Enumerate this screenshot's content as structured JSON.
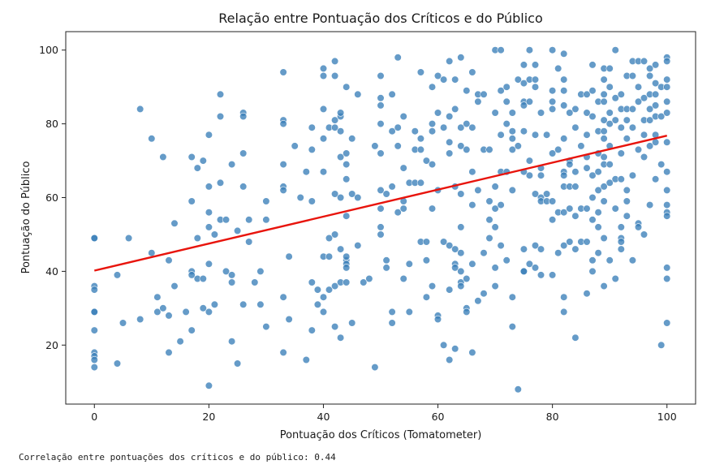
{
  "chart_data": {
    "type": "scatter",
    "title": "Relação entre Pontuação dos Críticos e do Público",
    "xlabel": "Pontuação dos Críticos (Tomatometer)",
    "ylabel": "Pontuação do Público",
    "xlim": [
      -5,
      105
    ],
    "ylim": [
      4,
      105
    ],
    "xticks": [
      0,
      20,
      40,
      60,
      80,
      100
    ],
    "yticks": [
      20,
      40,
      60,
      80,
      100
    ],
    "grid": false,
    "point_color": "#3a7fb8",
    "trend_line": {
      "color": "#e8140c",
      "x": [
        0,
        100
      ],
      "y": [
        40.2,
        76.8
      ]
    },
    "points": [
      [
        0,
        49
      ],
      [
        0,
        49
      ],
      [
        0,
        36
      ],
      [
        0,
        35
      ],
      [
        0,
        29
      ],
      [
        0,
        29
      ],
      [
        0,
        24
      ],
      [
        0,
        18
      ],
      [
        0,
        17
      ],
      [
        0,
        16
      ],
      [
        0,
        14
      ],
      [
        4,
        39
      ],
      [
        4,
        15
      ],
      [
        5,
        26
      ],
      [
        6,
        49
      ],
      [
        8,
        27
      ],
      [
        8,
        84
      ],
      [
        10,
        76
      ],
      [
        10,
        45
      ],
      [
        11,
        33
      ],
      [
        11,
        29
      ],
      [
        12,
        30
      ],
      [
        12,
        71
      ],
      [
        13,
        43
      ],
      [
        13,
        28
      ],
      [
        13,
        18
      ],
      [
        14,
        53
      ],
      [
        14,
        36
      ],
      [
        15,
        21
      ],
      [
        16,
        29
      ],
      [
        17,
        71
      ],
      [
        17,
        59
      ],
      [
        17,
        40
      ],
      [
        17,
        39
      ],
      [
        17,
        24
      ],
      [
        18,
        68
      ],
      [
        18,
        38
      ],
      [
        18,
        49
      ],
      [
        19,
        70
      ],
      [
        19,
        38
      ],
      [
        19,
        30
      ],
      [
        20,
        77
      ],
      [
        20,
        63
      ],
      [
        20,
        56
      ],
      [
        20,
        52
      ],
      [
        20,
        42
      ],
      [
        20,
        29
      ],
      [
        20,
        9
      ],
      [
        21,
        31
      ],
      [
        21,
        50
      ],
      [
        22,
        88
      ],
      [
        22,
        82
      ],
      [
        22,
        64
      ],
      [
        22,
        54
      ],
      [
        23,
        54
      ],
      [
        23,
        40
      ],
      [
        24,
        69
      ],
      [
        24,
        39
      ],
      [
        24,
        37
      ],
      [
        24,
        21
      ],
      [
        25,
        51
      ],
      [
        25,
        15
      ],
      [
        26,
        83
      ],
      [
        26,
        82
      ],
      [
        26,
        72
      ],
      [
        26,
        63
      ],
      [
        26,
        31
      ],
      [
        27,
        54
      ],
      [
        27,
        48
      ],
      [
        28,
        37
      ],
      [
        29,
        40
      ],
      [
        29,
        31
      ],
      [
        30,
        59
      ],
      [
        30,
        54
      ],
      [
        30,
        25
      ],
      [
        33,
        94
      ],
      [
        33,
        81
      ],
      [
        33,
        80
      ],
      [
        33,
        69
      ],
      [
        33,
        63
      ],
      [
        33,
        62
      ],
      [
        33,
        33
      ],
      [
        33,
        18
      ],
      [
        34,
        44
      ],
      [
        34,
        27
      ],
      [
        35,
        74
      ],
      [
        36,
        60
      ],
      [
        37,
        67
      ],
      [
        37,
        16
      ],
      [
        38,
        79
      ],
      [
        38,
        73
      ],
      [
        38,
        59
      ],
      [
        38,
        37
      ],
      [
        38,
        24
      ],
      [
        39,
        35
      ],
      [
        39,
        31
      ],
      [
        40,
        93
      ],
      [
        40,
        95
      ],
      [
        40,
        84
      ],
      [
        40,
        76
      ],
      [
        40,
        67
      ],
      [
        40,
        44
      ],
      [
        40,
        33
      ],
      [
        40,
        29
      ],
      [
        41,
        79
      ],
      [
        41,
        49
      ],
      [
        41,
        44
      ],
      [
        41,
        35
      ],
      [
        42,
        97
      ],
      [
        42,
        93
      ],
      [
        42,
        79
      ],
      [
        42,
        61
      ],
      [
        42,
        81
      ],
      [
        42,
        50
      ],
      [
        42,
        36
      ],
      [
        42,
        25
      ],
      [
        43,
        82
      ],
      [
        43,
        78
      ],
      [
        43,
        83
      ],
      [
        43,
        71
      ],
      [
        43,
        60
      ],
      [
        43,
        46
      ],
      [
        43,
        37
      ],
      [
        43,
        22
      ],
      [
        44,
        90
      ],
      [
        44,
        72
      ],
      [
        44,
        69
      ],
      [
        44,
        65
      ],
      [
        44,
        55
      ],
      [
        44,
        43
      ],
      [
        44,
        42
      ],
      [
        44,
        37
      ],
      [
        44,
        44
      ],
      [
        44,
        41
      ],
      [
        45,
        76
      ],
      [
        45,
        61
      ],
      [
        45,
        26
      ],
      [
        46,
        88
      ],
      [
        46,
        60
      ],
      [
        46,
        47
      ],
      [
        47,
        37
      ],
      [
        48,
        38
      ],
      [
        49,
        74
      ],
      [
        49,
        14
      ],
      [
        50,
        93
      ],
      [
        50,
        87
      ],
      [
        50,
        85
      ],
      [
        50,
        80
      ],
      [
        50,
        72
      ],
      [
        50,
        62
      ],
      [
        50,
        57
      ],
      [
        50,
        52
      ],
      [
        50,
        50
      ],
      [
        51,
        61
      ],
      [
        51,
        43
      ],
      [
        51,
        41
      ],
      [
        52,
        88
      ],
      [
        52,
        78
      ],
      [
        52,
        63
      ],
      [
        52,
        29
      ],
      [
        52,
        26
      ],
      [
        53,
        98
      ],
      [
        53,
        79
      ],
      [
        53,
        74
      ],
      [
        53,
        56
      ],
      [
        54,
        82
      ],
      [
        54,
        68
      ],
      [
        54,
        59
      ],
      [
        54,
        57
      ],
      [
        54,
        38
      ],
      [
        55,
        64
      ],
      [
        55,
        42
      ],
      [
        55,
        29
      ],
      [
        56,
        78
      ],
      [
        56,
        73
      ],
      [
        56,
        64
      ],
      [
        57,
        94
      ],
      [
        57,
        76
      ],
      [
        57,
        73
      ],
      [
        57,
        64
      ],
      [
        57,
        48
      ],
      [
        58,
        70
      ],
      [
        58,
        48
      ],
      [
        58,
        43
      ],
      [
        58,
        33
      ],
      [
        59,
        90
      ],
      [
        59,
        80
      ],
      [
        59,
        78
      ],
      [
        59,
        69
      ],
      [
        59,
        57
      ],
      [
        59,
        36
      ],
      [
        60,
        93
      ],
      [
        60,
        83
      ],
      [
        60,
        62
      ],
      [
        60,
        28
      ],
      [
        60,
        27
      ],
      [
        61,
        92
      ],
      [
        61,
        48
      ],
      [
        61,
        20
      ],
      [
        61,
        79
      ],
      [
        62,
        97
      ],
      [
        62,
        82
      ],
      [
        62,
        75
      ],
      [
        62,
        72
      ],
      [
        62,
        47
      ],
      [
        62,
        35
      ],
      [
        62,
        16
      ],
      [
        63,
        92
      ],
      [
        63,
        84
      ],
      [
        63,
        63
      ],
      [
        63,
        46
      ],
      [
        63,
        42
      ],
      [
        63,
        41
      ],
      [
        63,
        19
      ],
      [
        64,
        98
      ],
      [
        64,
        74
      ],
      [
        64,
        79
      ],
      [
        64,
        61
      ],
      [
        64,
        52
      ],
      [
        64,
        45
      ],
      [
        64,
        40
      ],
      [
        64,
        37
      ],
      [
        64,
        36
      ],
      [
        65,
        89
      ],
      [
        65,
        80
      ],
      [
        65,
        73
      ],
      [
        65,
        38
      ],
      [
        65,
        30
      ],
      [
        65,
        29
      ],
      [
        66,
        94
      ],
      [
        66,
        79
      ],
      [
        66,
        67
      ],
      [
        66,
        58
      ],
      [
        66,
        42
      ],
      [
        66,
        18
      ],
      [
        67,
        86
      ],
      [
        67,
        88
      ],
      [
        67,
        62
      ],
      [
        67,
        32
      ],
      [
        68,
        88
      ],
      [
        68,
        73
      ],
      [
        68,
        45
      ],
      [
        68,
        34
      ],
      [
        69,
        73
      ],
      [
        69,
        59
      ],
      [
        69,
        54
      ],
      [
        69,
        49
      ],
      [
        70,
        100
      ],
      [
        70,
        83
      ],
      [
        70,
        63
      ],
      [
        70,
        57
      ],
      [
        70,
        52
      ],
      [
        70,
        41
      ],
      [
        70,
        36
      ],
      [
        71,
        100
      ],
      [
        71,
        89
      ],
      [
        71,
        77
      ],
      [
        71,
        67
      ],
      [
        71,
        58
      ],
      [
        71,
        47
      ],
      [
        72,
        90
      ],
      [
        72,
        86
      ],
      [
        72,
        80
      ],
      [
        72,
        67
      ],
      [
        72,
        43
      ],
      [
        73,
        83
      ],
      [
        73,
        78
      ],
      [
        73,
        76
      ],
      [
        73,
        73
      ],
      [
        73,
        62
      ],
      [
        73,
        33
      ],
      [
        73,
        25
      ],
      [
        74,
        92
      ],
      [
        74,
        74
      ],
      [
        74,
        8
      ],
      [
        75,
        96
      ],
      [
        75,
        91
      ],
      [
        75,
        86
      ],
      [
        75,
        85
      ],
      [
        75,
        78
      ],
      [
        75,
        67
      ],
      [
        75,
        46
      ],
      [
        75,
        40
      ],
      [
        75,
        40
      ],
      [
        76,
        100
      ],
      [
        76,
        92
      ],
      [
        76,
        86
      ],
      [
        76,
        70
      ],
      [
        76,
        66
      ],
      [
        76,
        42
      ],
      [
        77,
        96
      ],
      [
        77,
        90
      ],
      [
        77,
        92
      ],
      [
        77,
        77
      ],
      [
        77,
        61
      ],
      [
        77,
        47
      ],
      [
        77,
        41
      ],
      [
        78,
        83
      ],
      [
        78,
        68
      ],
      [
        78,
        66
      ],
      [
        78,
        60
      ],
      [
        78,
        59
      ],
      [
        78,
        46
      ],
      [
        78,
        39
      ],
      [
        79,
        77
      ],
      [
        79,
        61
      ],
      [
        79,
        59
      ],
      [
        80,
        100
      ],
      [
        80,
        89
      ],
      [
        80,
        86
      ],
      [
        80,
        84
      ],
      [
        80,
        72
      ],
      [
        80,
        59
      ],
      [
        80,
        54
      ],
      [
        80,
        39
      ],
      [
        81,
        95
      ],
      [
        81,
        73
      ],
      [
        81,
        56
      ],
      [
        81,
        45
      ],
      [
        82,
        99
      ],
      [
        82,
        92
      ],
      [
        82,
        89
      ],
      [
        82,
        85
      ],
      [
        82,
        76
      ],
      [
        82,
        67
      ],
      [
        82,
        66
      ],
      [
        82,
        63
      ],
      [
        82,
        56
      ],
      [
        82,
        47
      ],
      [
        82,
        33
      ],
      [
        82,
        29
      ],
      [
        83,
        83
      ],
      [
        83,
        70
      ],
      [
        83,
        69
      ],
      [
        83,
        63
      ],
      [
        83,
        57
      ],
      [
        83,
        48
      ],
      [
        84,
        84
      ],
      [
        84,
        79
      ],
      [
        84,
        67
      ],
      [
        84,
        63
      ],
      [
        84,
        55
      ],
      [
        84,
        46
      ],
      [
        84,
        22
      ],
      [
        85,
        88
      ],
      [
        85,
        74
      ],
      [
        85,
        48
      ],
      [
        85,
        57
      ],
      [
        86,
        88
      ],
      [
        86,
        83
      ],
      [
        86,
        77
      ],
      [
        86,
        71
      ],
      [
        86,
        68
      ],
      [
        86,
        57
      ],
      [
        86,
        48
      ],
      [
        86,
        34
      ],
      [
        87,
        96
      ],
      [
        87,
        89
      ],
      [
        87,
        82
      ],
      [
        87,
        66
      ],
      [
        87,
        60
      ],
      [
        87,
        54
      ],
      [
        87,
        43
      ],
      [
        87,
        40
      ],
      [
        88,
        86
      ],
      [
        88,
        78
      ],
      [
        88,
        72
      ],
      [
        88,
        67
      ],
      [
        88,
        62
      ],
      [
        88,
        56
      ],
      [
        88,
        52
      ],
      [
        88,
        45
      ],
      [
        89,
        95
      ],
      [
        89,
        92
      ],
      [
        89,
        88
      ],
      [
        89,
        86
      ],
      [
        89,
        81
      ],
      [
        89,
        78
      ],
      [
        89,
        76
      ],
      [
        89,
        71
      ],
      [
        89,
        69
      ],
      [
        89,
        63
      ],
      [
        89,
        59
      ],
      [
        89,
        49
      ],
      [
        89,
        36
      ],
      [
        90,
        95
      ],
      [
        90,
        90
      ],
      [
        90,
        83
      ],
      [
        90,
        80
      ],
      [
        90,
        74
      ],
      [
        90,
        69
      ],
      [
        90,
        64
      ],
      [
        90,
        43
      ],
      [
        91,
        100
      ],
      [
        91,
        87
      ],
      [
        91,
        81
      ],
      [
        91,
        65
      ],
      [
        91,
        57
      ],
      [
        91,
        38
      ],
      [
        92,
        88
      ],
      [
        92,
        84
      ],
      [
        92,
        79
      ],
      [
        92,
        72
      ],
      [
        92,
        65
      ],
      [
        92,
        52
      ],
      [
        92,
        49
      ],
      [
        92,
        48
      ],
      [
        92,
        46
      ],
      [
        93,
        93
      ],
      [
        93,
        84
      ],
      [
        93,
        81
      ],
      [
        93,
        76
      ],
      [
        93,
        62
      ],
      [
        93,
        59
      ],
      [
        93,
        55
      ],
      [
        94,
        97
      ],
      [
        94,
        93
      ],
      [
        94,
        84
      ],
      [
        94,
        79
      ],
      [
        94,
        66
      ],
      [
        94,
        43
      ],
      [
        95,
        97
      ],
      [
        95,
        90
      ],
      [
        95,
        86
      ],
      [
        95,
        73
      ],
      [
        95,
        53
      ],
      [
        95,
        52
      ],
      [
        96,
        97
      ],
      [
        96,
        87
      ],
      [
        96,
        81
      ],
      [
        96,
        77
      ],
      [
        96,
        71
      ],
      [
        96,
        50
      ],
      [
        97,
        95
      ],
      [
        97,
        93
      ],
      [
        97,
        88
      ],
      [
        97,
        84
      ],
      [
        97,
        81
      ],
      [
        97,
        74
      ],
      [
        97,
        58
      ],
      [
        98,
        96
      ],
      [
        98,
        91
      ],
      [
        98,
        88
      ],
      [
        98,
        85
      ],
      [
        98,
        82
      ],
      [
        98,
        77
      ],
      [
        98,
        75
      ],
      [
        98,
        65
      ],
      [
        99,
        90
      ],
      [
        99,
        82
      ],
      [
        99,
        69
      ],
      [
        99,
        20
      ],
      [
        100,
        98
      ],
      [
        100,
        97
      ],
      [
        100,
        92
      ],
      [
        100,
        90
      ],
      [
        100,
        86
      ],
      [
        100,
        83
      ],
      [
        100,
        75
      ],
      [
        100,
        67
      ],
      [
        100,
        62
      ],
      [
        100,
        58
      ],
      [
        100,
        56
      ],
      [
        100,
        55
      ],
      [
        100,
        41
      ],
      [
        100,
        38
      ],
      [
        100,
        26
      ]
    ]
  },
  "console": {
    "output": "Correlação entre pontuações dos críticos e do público: 0.44"
  }
}
